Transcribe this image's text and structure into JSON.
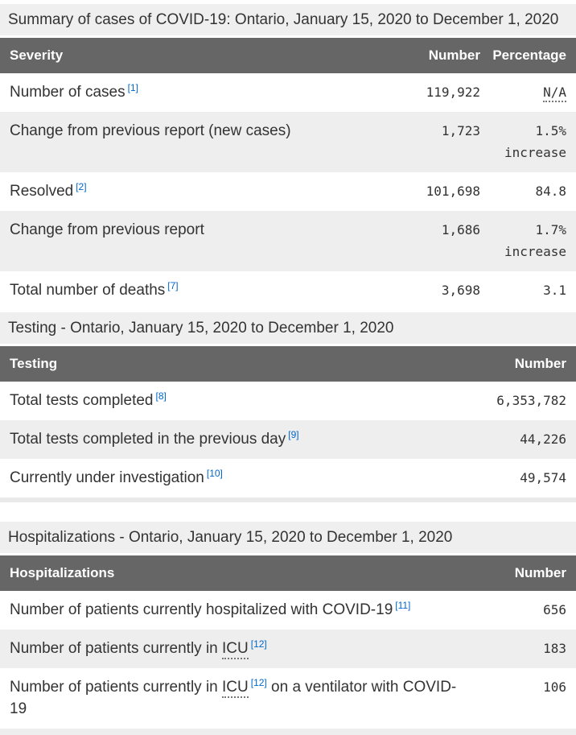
{
  "colors": {
    "header_bg": "#666666",
    "header_text": "#ffffff",
    "caption_bg": "#efefef",
    "row_stripe_bg": "#eeeeee",
    "body_text": "#333333",
    "footnote_link": "#0066cc"
  },
  "tables": [
    {
      "caption": "Summary of cases of COVID-19: Ontario, January 15, 2020 to December 1, 2020",
      "columns": [
        "Severity",
        "Number",
        "Percentage"
      ],
      "rows": [
        {
          "label": [
            {
              "t": "text",
              "v": "Number of cases"
            },
            {
              "t": "sup",
              "v": "[1]"
            }
          ],
          "number": "119,922",
          "pct": "N/A",
          "pct_abbr": true
        },
        {
          "label": [
            {
              "t": "text",
              "v": "Change from previous report (new cases)"
            }
          ],
          "number": "1,723",
          "pct": "1.5% increase"
        },
        {
          "label": [
            {
              "t": "text",
              "v": "Resolved"
            },
            {
              "t": "sup",
              "v": "[2]"
            }
          ],
          "number": "101,698",
          "pct": "84.8"
        },
        {
          "label": [
            {
              "t": "text",
              "v": "Change from previous report"
            }
          ],
          "number": "1,686",
          "pct": "1.7% increase"
        },
        {
          "label": [
            {
              "t": "text",
              "v": "Total number of deaths"
            },
            {
              "t": "sup",
              "v": "[7]"
            }
          ],
          "number": "3,698",
          "pct": "3.1"
        }
      ]
    },
    {
      "caption": "Testing - Ontario, January 15, 2020 to December 1, 2020",
      "columns": [
        "Testing",
        "Number"
      ],
      "rows": [
        {
          "label": [
            {
              "t": "text",
              "v": "Total tests completed"
            },
            {
              "t": "sup",
              "v": "[8]"
            }
          ],
          "number": "6,353,782"
        },
        {
          "label": [
            {
              "t": "text",
              "v": "Total tests completed in the previous day"
            },
            {
              "t": "sup",
              "v": "[9]"
            }
          ],
          "number": "44,226"
        },
        {
          "label": [
            {
              "t": "text",
              "v": "Currently under investigation"
            },
            {
              "t": "sup",
              "v": "[10]"
            }
          ],
          "number": "49,574"
        }
      ]
    },
    {
      "caption": "Hospitalizations - Ontario, January 15, 2020 to December 1, 2020",
      "columns": [
        "Hospitalizations",
        "Number"
      ],
      "rows": [
        {
          "label": [
            {
              "t": "text",
              "v": "Number of patients currently hospitalized with COVID-19"
            },
            {
              "t": "sup",
              "v": "[11]"
            }
          ],
          "number": "656"
        },
        {
          "label": [
            {
              "t": "text",
              "v": "Number of patients currently in "
            },
            {
              "t": "abbr",
              "v": "ICU"
            },
            {
              "t": "sup",
              "v": "[12]"
            }
          ],
          "number": "183"
        },
        {
          "label": [
            {
              "t": "text",
              "v": "Number of patients currently in "
            },
            {
              "t": "abbr",
              "v": "ICU"
            },
            {
              "t": "sup",
              "v": "[12]"
            },
            {
              "t": "text",
              "v": " on a ventilator with COVID-19"
            }
          ],
          "number": "106"
        }
      ]
    }
  ]
}
